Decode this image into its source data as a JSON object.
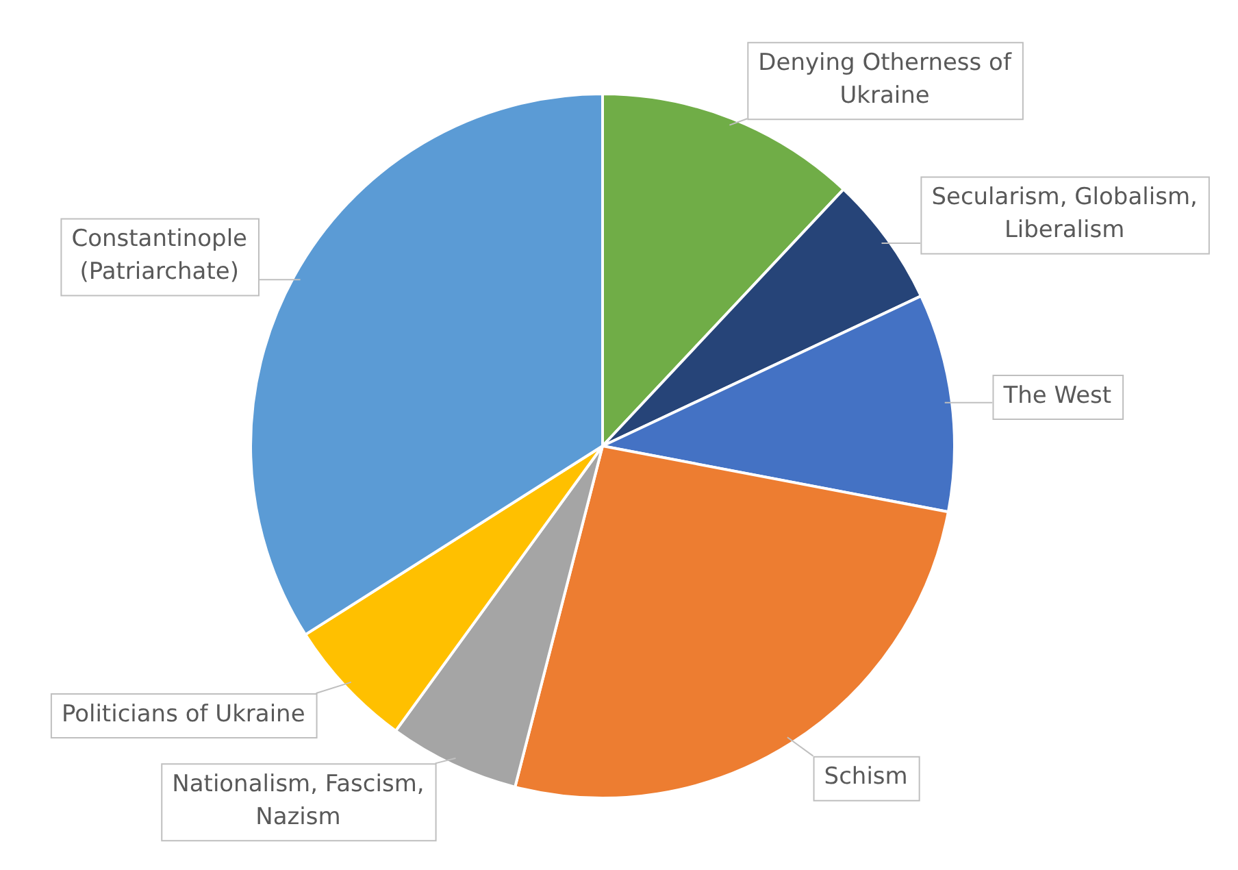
{
  "chart_data": {
    "type": "pie",
    "categories": [
      "Denying Otherness of Ukraine",
      "Secularism, Globalism, Liberalism",
      "The West",
      "Schism",
      "Nationalism, Fascism, Nazism",
      "Politicians of Ukraine",
      "Constantinople (Patriarchate)"
    ],
    "values": [
      12,
      6,
      10,
      26,
      6,
      6,
      34
    ],
    "colors": [
      "#70ad47",
      "#264478",
      "#4472c4",
      "#ed7d31",
      "#a5a5a5",
      "#ffc000",
      "#5b9bd5"
    ],
    "legend": false
  }
}
